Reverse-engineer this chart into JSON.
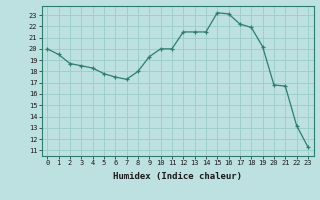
{
  "x": [
    0,
    1,
    2,
    3,
    4,
    5,
    6,
    7,
    8,
    9,
    10,
    11,
    12,
    13,
    14,
    15,
    16,
    17,
    18,
    19,
    20,
    21,
    22,
    23
  ],
  "y": [
    20.0,
    19.5,
    18.7,
    18.5,
    18.3,
    17.8,
    17.5,
    17.3,
    18.0,
    19.3,
    20.0,
    20.0,
    21.5,
    21.5,
    21.5,
    23.2,
    23.1,
    22.2,
    21.9,
    20.2,
    16.8,
    16.7,
    13.2,
    11.3
  ],
  "line_color": "#2e7d6e",
  "marker": "+",
  "marker_size": 3,
  "bg_color": "#bde0e0",
  "grid_color": "#9ecece",
  "xlabel": "Humidex (Indice chaleur)",
  "ylabel_ticks": [
    11,
    12,
    13,
    14,
    15,
    16,
    17,
    18,
    19,
    20,
    21,
    22,
    23
  ],
  "xlim": [
    -0.5,
    23.5
  ],
  "ylim": [
    10.5,
    23.8
  ]
}
